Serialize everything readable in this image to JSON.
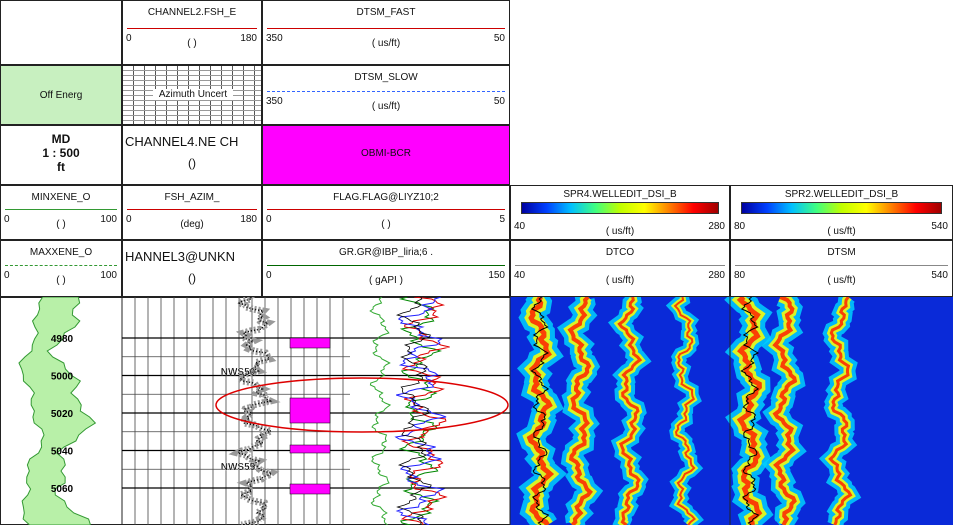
{
  "headers": {
    "channel2": {
      "name": "CHANNEL2.FSH_E",
      "left": 0,
      "unit": "( )",
      "right": 180
    },
    "dtsm_fast": {
      "name": "DTSM_FAST",
      "left": 350,
      "unit": "( us/ft)",
      "right": 50
    },
    "off_energ": "Off Energ",
    "azimuth": "Azimuth Uncert",
    "dtsm_slow": {
      "name": "DTSM_SLOW",
      "left": 350,
      "unit": "( us/ft)",
      "right": 50
    },
    "md": {
      "label": "MD",
      "scale": "1 : 500",
      "unit": "ft"
    },
    "channel4": {
      "name": "CHANNEL4.NE CH",
      "unit": "()"
    },
    "obmi": "OBMI-BCR",
    "minxene": {
      "name": "MINXENE_O",
      "left": 0,
      "unit": "( )",
      "right": 100
    },
    "fsh_azim": {
      "name": "FSH_AZIM_",
      "left": 0,
      "unit": "(deg)",
      "right": 180
    },
    "flag": {
      "name": "FLAG.FLAG@LIYZ10;2",
      "left": 0,
      "unit": "( )",
      "right": 5
    },
    "spr4": {
      "name": "SPR4.WELLEDIT_DSI_B",
      "left": 40,
      "unit": "( us/ft)",
      "right": 280
    },
    "spr2": {
      "name": "SPR2.WELLEDIT_DSI_B",
      "left": 80,
      "unit": "( us/ft)",
      "right": 540
    },
    "maxxene": {
      "name": "MAXXENE_O",
      "left": 0,
      "unit": "( )",
      "right": 100
    },
    "channel3": {
      "name": "HANNEL3@UNKN",
      "unit": "()"
    },
    "gr": {
      "name": "GR.GR@IBP_liria;6 .",
      "left": 0,
      "unit": "( gAPI )",
      "right": 150
    },
    "dtco": {
      "name": "DTCO",
      "left": 40,
      "unit": "( us/ft)",
      "right": 280
    },
    "dtsm": {
      "name": "DTSM",
      "left": 80,
      "unit": "( us/ft)",
      "right": 540
    }
  },
  "depth_labels": [
    4980,
    5000,
    5020,
    5040,
    5060
  ],
  "markers": [
    "NWS50",
    "NWS55"
  ]
}
